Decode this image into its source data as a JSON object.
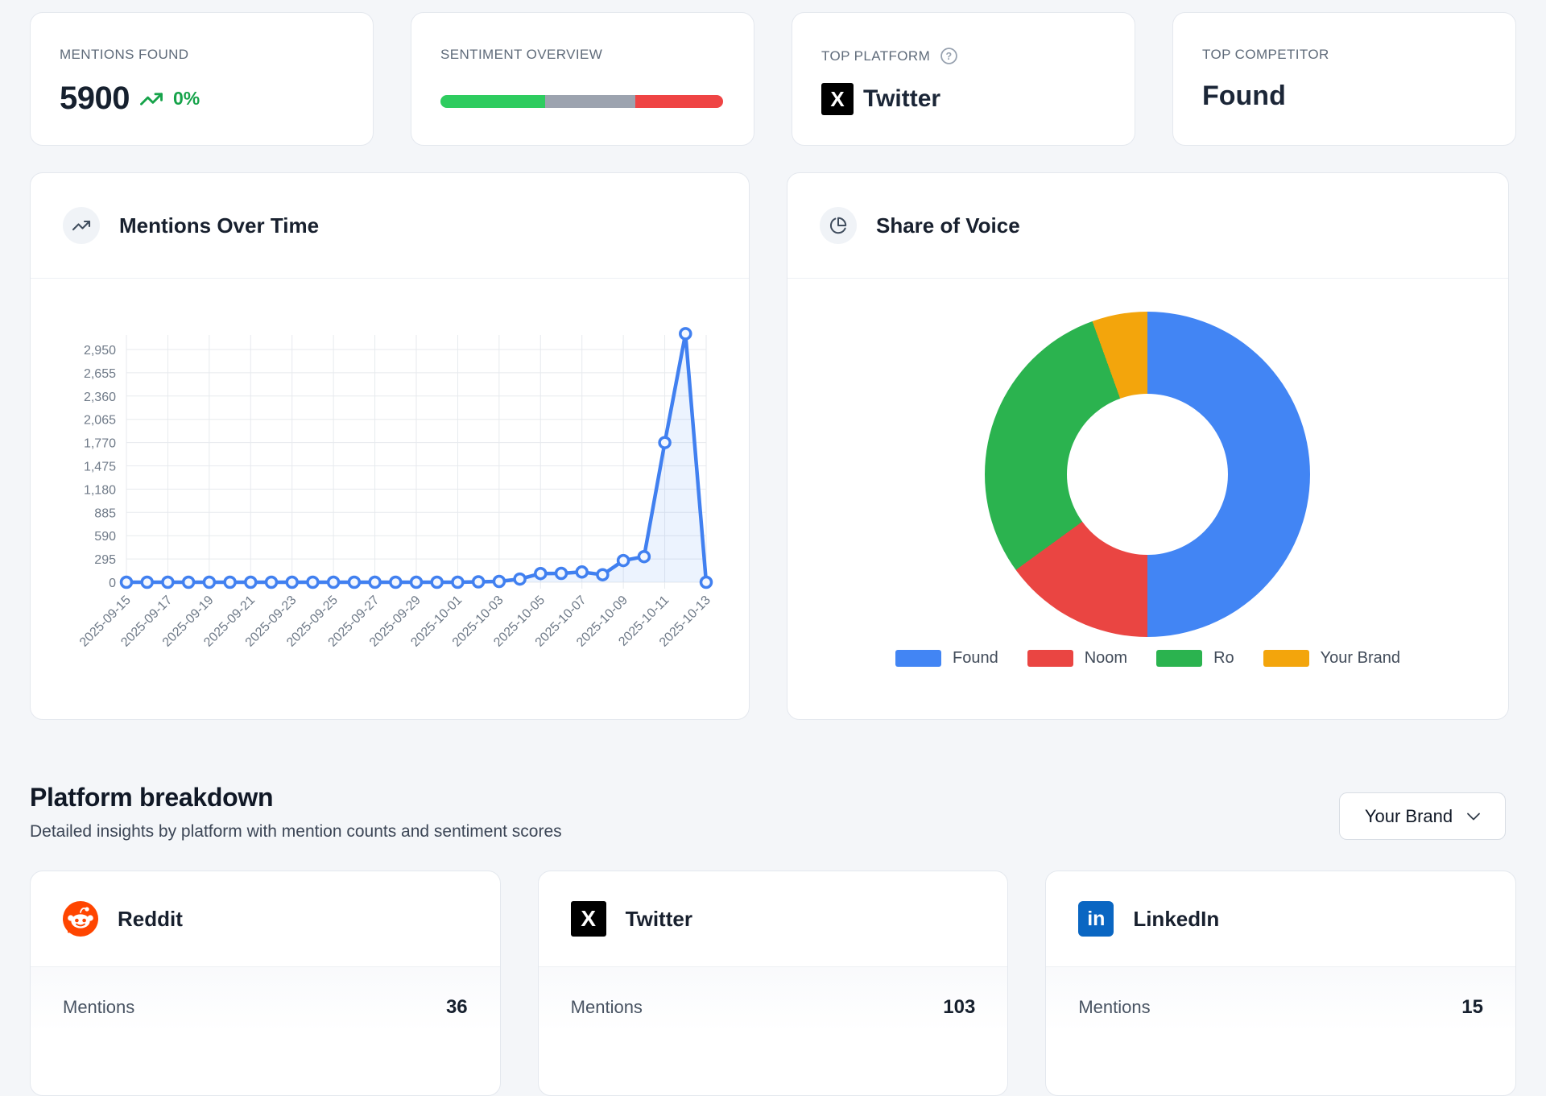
{
  "stats": {
    "mentions": {
      "label": "MENTIONS FOUND",
      "value": "5900",
      "trend": "0%",
      "trend_color": "#16a34a"
    },
    "sentiment": {
      "label": "SENTIMENT OVERVIEW",
      "segments": [
        {
          "name": "positive",
          "color": "#2ecc5f",
          "percent": 37
        },
        {
          "name": "neutral",
          "color": "#9ca3af",
          "percent": 32
        },
        {
          "name": "negative",
          "color": "#ef4444",
          "percent": 31
        }
      ]
    },
    "top_platform": {
      "label": "TOP PLATFORM",
      "value": "Twitter",
      "icon": "x-logo"
    },
    "top_competitor": {
      "label": "TOP COMPETITOR",
      "value": "Found"
    }
  },
  "chart_data": [
    {
      "type": "line",
      "title": "Mentions Over Time",
      "x": [
        "2025-09-15",
        "2025-09-16",
        "2025-09-17",
        "2025-09-18",
        "2025-09-19",
        "2025-09-20",
        "2025-09-21",
        "2025-09-22",
        "2025-09-23",
        "2025-09-24",
        "2025-09-25",
        "2025-09-26",
        "2025-09-27",
        "2025-09-28",
        "2025-09-29",
        "2025-09-30",
        "2025-10-01",
        "2025-10-02",
        "2025-10-03",
        "2025-10-04",
        "2025-10-05",
        "2025-10-06",
        "2025-10-07",
        "2025-10-08",
        "2025-10-09",
        "2025-10-10",
        "2025-10-11",
        "2025-10-12",
        "2025-10-13"
      ],
      "values": [
        0,
        0,
        0,
        0,
        0,
        0,
        0,
        0,
        0,
        0,
        0,
        0,
        0,
        0,
        0,
        0,
        0,
        5,
        10,
        40,
        110,
        112,
        130,
        95,
        275,
        325,
        1770,
        3150,
        0
      ],
      "yticks": [
        0,
        295,
        590,
        885,
        1180,
        1475,
        1770,
        2065,
        2360,
        2655,
        2950
      ],
      "ylim": [
        0,
        3245
      ],
      "x_label_every": 2,
      "grid": true,
      "line_color": "#4180f0",
      "marker_fill": "#f3f7fe",
      "area_fill": "rgba(66,133,244,0.10)",
      "xlabel": "",
      "ylabel": ""
    },
    {
      "type": "pie",
      "title": "Share of Voice",
      "donut": true,
      "labels": [
        "Found",
        "Noom",
        "Ro",
        "Your Brand"
      ],
      "values": [
        50,
        15,
        29.5,
        5.5
      ],
      "colors": [
        "#4285f4",
        "#ea4542",
        "#2bb34f",
        "#f3a50c"
      ],
      "legend_position": "bottom"
    }
  ],
  "platform_breakdown": {
    "title": "Platform breakdown",
    "subtitle": "Detailed insights by platform with mention counts and sentiment scores",
    "filter_value": "Your Brand",
    "platforms": [
      {
        "name": "Reddit",
        "metric_label": "Mentions",
        "metric_value": "36"
      },
      {
        "name": "Twitter",
        "metric_label": "Mentions",
        "metric_value": "103"
      },
      {
        "name": "LinkedIn",
        "metric_label": "Mentions",
        "metric_value": "15"
      }
    ]
  }
}
